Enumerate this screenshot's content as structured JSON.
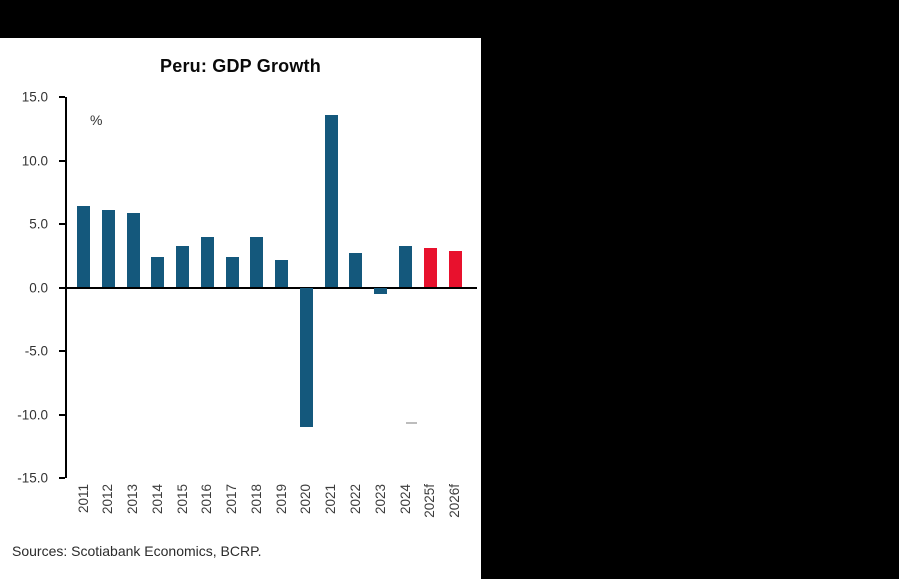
{
  "window": {
    "background_color": "#000000",
    "panel_color": "#ffffff"
  },
  "chart_data": {
    "type": "bar",
    "title": "Peru: GDP Growth",
    "unit_label": "%",
    "categories": [
      "2011",
      "2012",
      "2013",
      "2014",
      "2015",
      "2016",
      "2017",
      "2018",
      "2019",
      "2020",
      "2021",
      "2022",
      "2023",
      "2024",
      "2025f",
      "2026f"
    ],
    "values": [
      6.4,
      6.1,
      5.9,
      2.4,
      3.3,
      4.0,
      2.4,
      4.0,
      2.2,
      -11.0,
      13.6,
      2.7,
      -0.5,
      3.3,
      3.1,
      2.9
    ],
    "bar_color": "#14587c",
    "forecast_color": "#e8112d",
    "forecast_from_index": 14,
    "ylim": [
      -15,
      15
    ],
    "yticks": [
      15.0,
      10.0,
      5.0,
      0.0,
      -5.0,
      -10.0,
      -15.0
    ],
    "ytick_labels": [
      "15.0",
      "10.0",
      "5.0",
      "0.0",
      "-5.0",
      "-10.0",
      "-15.0"
    ],
    "xlabel": "",
    "ylabel": "%",
    "grid": false,
    "legend": "none",
    "axis_color": "#000000"
  },
  "footer": {
    "source": "Sources: Scotiabank Economics, BCRP."
  }
}
